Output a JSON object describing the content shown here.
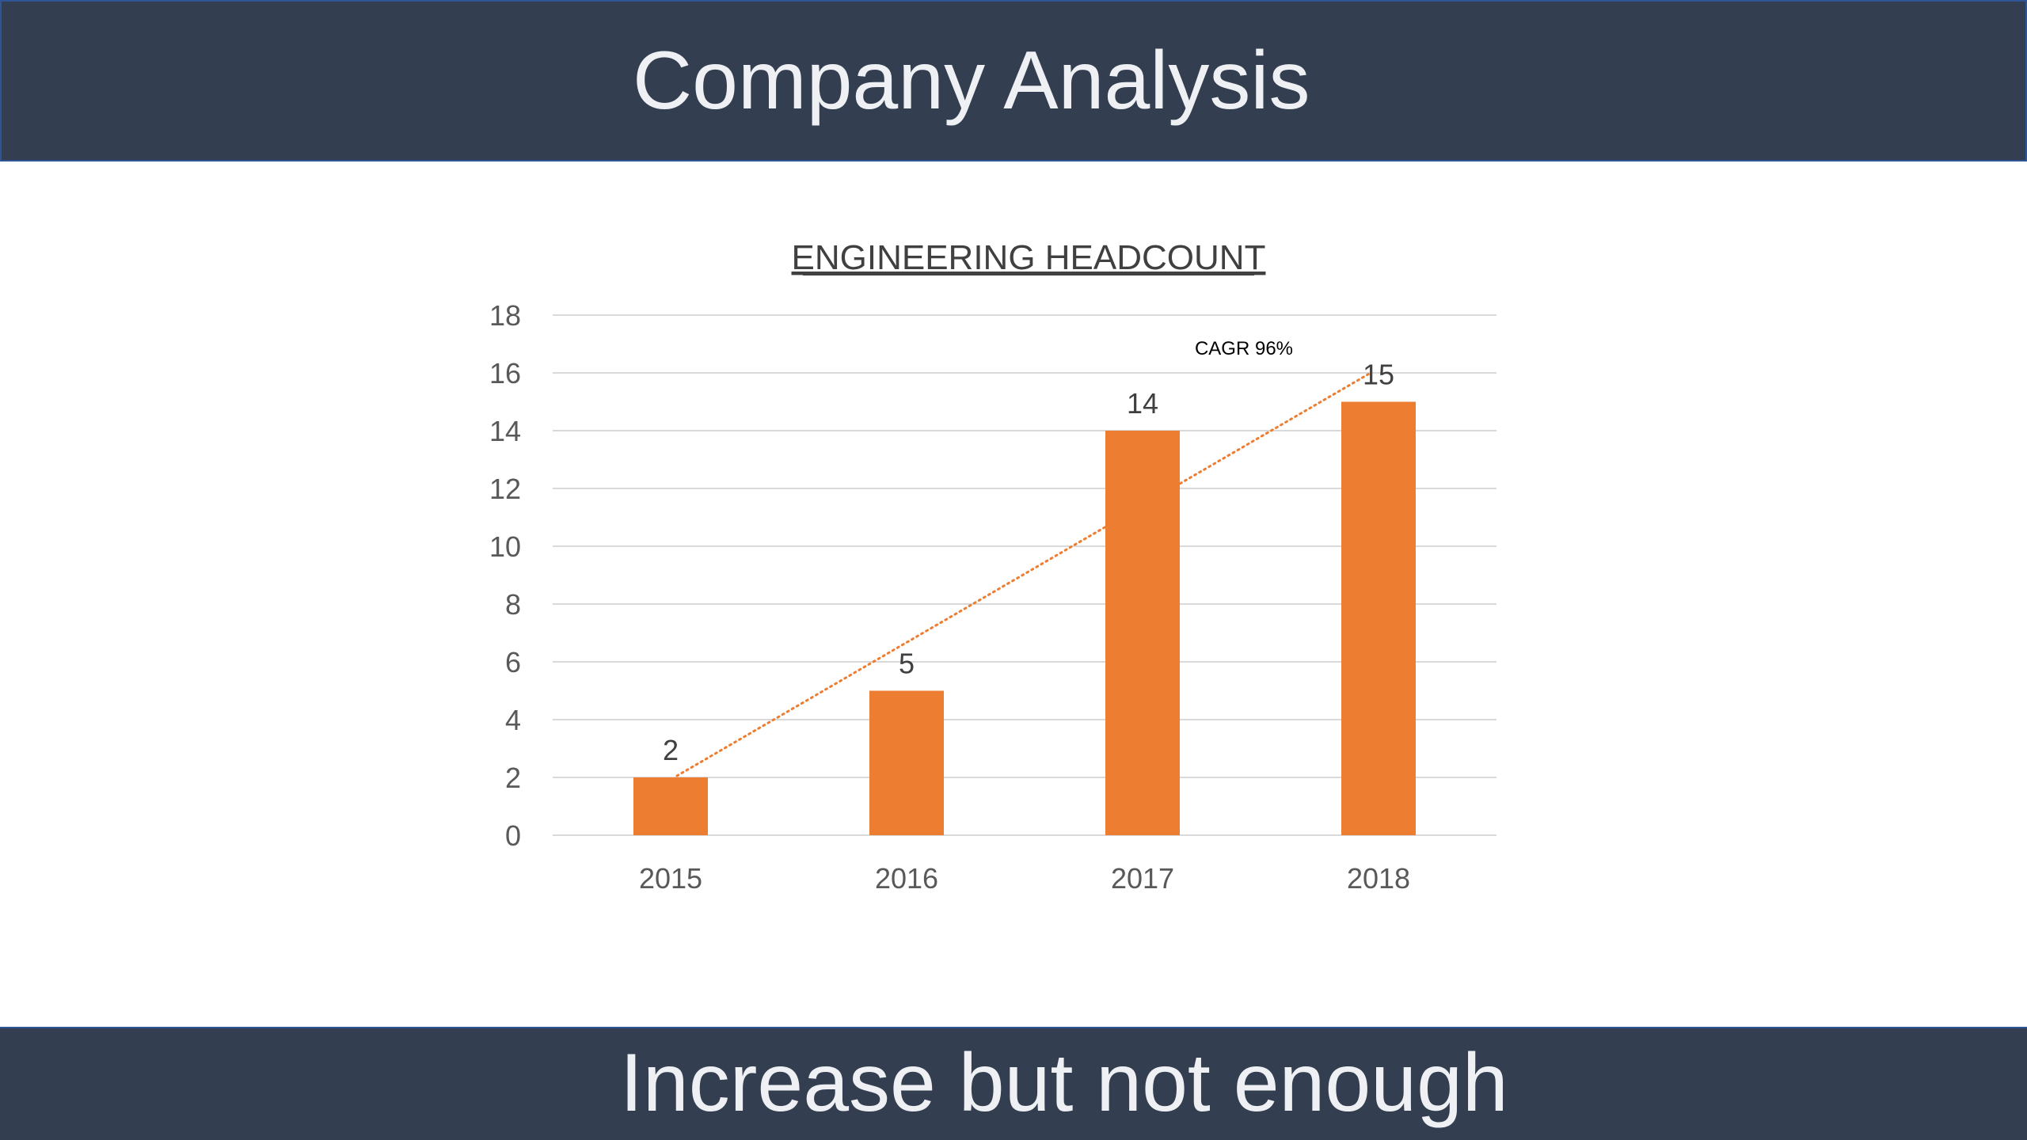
{
  "slide": {
    "title": "Company Analysis",
    "footer": "Increase but not enough"
  },
  "colors": {
    "band": "#333f50",
    "band_border": "#2f5597",
    "bar": "#ed7d31",
    "trendline": "#ed7d31",
    "gridline": "#d9d9d9"
  },
  "chart_data": {
    "type": "bar",
    "title": "ENGINEERING HEADCOUNT",
    "title_underlined": true,
    "categories": [
      "2015",
      "2016",
      "2017",
      "2018"
    ],
    "values": [
      2,
      5,
      14,
      15
    ],
    "ylim": [
      0,
      18
    ],
    "yticks": [
      0,
      2,
      4,
      6,
      8,
      10,
      12,
      14,
      16,
      18
    ],
    "xlabel": "",
    "ylabel": "",
    "grid": true,
    "legend": "none",
    "trendline": {
      "style": "dotted",
      "start": {
        "x": "2015",
        "y": 2
      },
      "end": {
        "x": "2018",
        "y": 16
      }
    },
    "annotations": [
      {
        "text": "CAGR 96%"
      }
    ]
  }
}
